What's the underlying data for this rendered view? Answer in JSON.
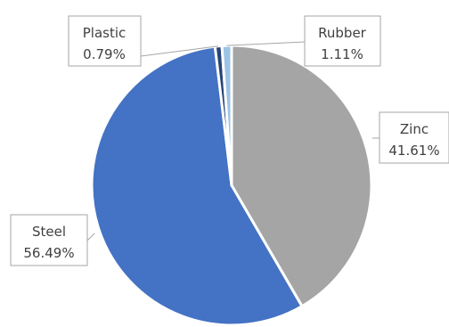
{
  "chart_data": {
    "type": "pie",
    "categories": [
      "Zinc",
      "Steel",
      "Plastic",
      "Rubber"
    ],
    "values": [
      41.61,
      56.49,
      0.79,
      1.11
    ],
    "value_labels": [
      "41.61%",
      "56.49%",
      "0.79%",
      "1.11%"
    ],
    "colors": [
      "#a5a5a5",
      "#4472c4",
      "#264478",
      "#9dc3e6"
    ],
    "title": "",
    "legend": "none"
  }
}
